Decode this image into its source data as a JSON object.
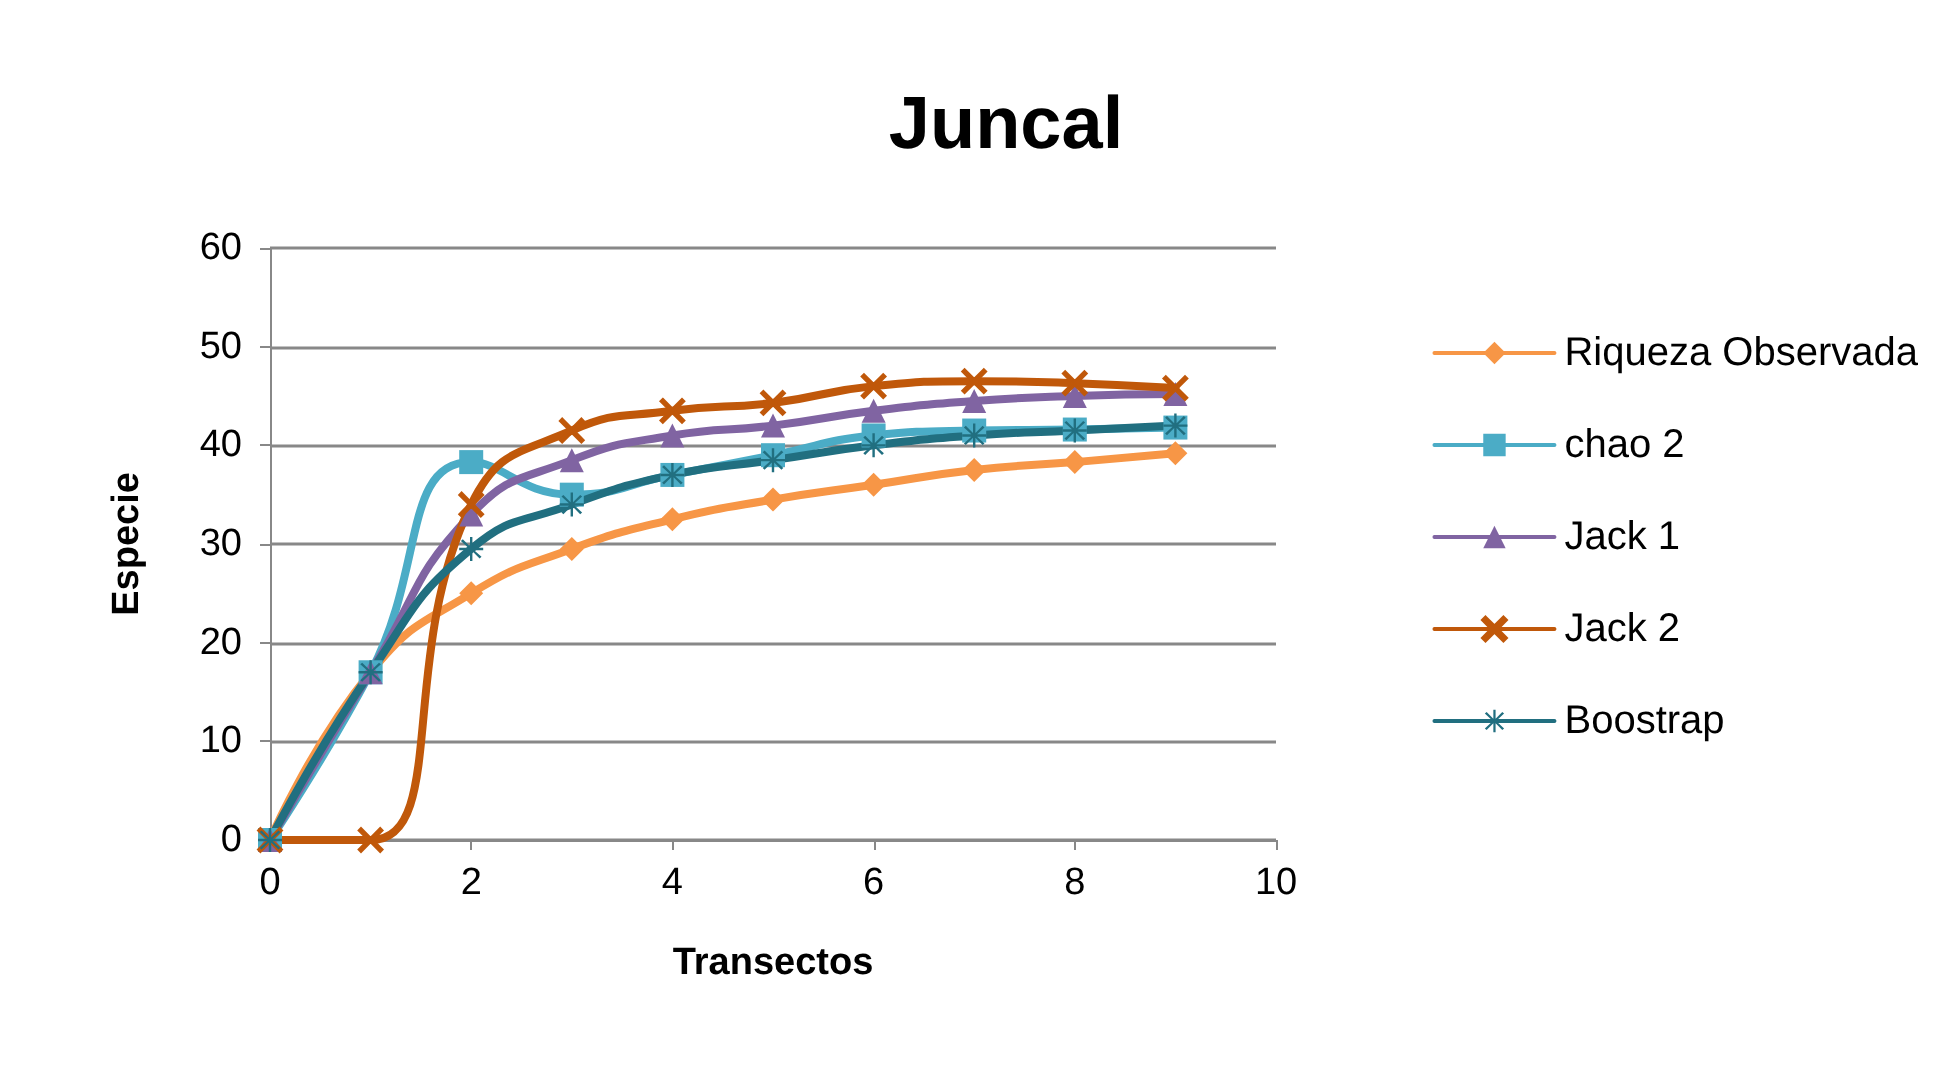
{
  "chart_data": {
    "type": "line",
    "title": "Juncal",
    "xlabel": "Transectos",
    "ylabel": "Especie",
    "x": [
      0,
      1,
      2,
      3,
      4,
      5,
      6,
      7,
      8,
      9
    ],
    "xlim": [
      0,
      10
    ],
    "xticks": [
      0,
      2,
      4,
      6,
      8,
      10
    ],
    "ylim": [
      0,
      60
    ],
    "yticks": [
      0,
      10,
      20,
      30,
      40,
      50,
      60
    ],
    "grid": "y",
    "legend": "right",
    "series": [
      {
        "name": "Riqueza Observada",
        "color": "#f79646",
        "marker": "diamond",
        "values": [
          0,
          17,
          25,
          29.5,
          32.5,
          34.5,
          36,
          37.5,
          38.3,
          39.2
        ]
      },
      {
        "name": "chao 2",
        "color": "#4bacc6",
        "marker": "square",
        "values": [
          0,
          17,
          38.3,
          35,
          37,
          39,
          41,
          41.5,
          41.6,
          41.8
        ]
      },
      {
        "name": "Jack 1",
        "color": "#8064a2",
        "marker": "triangle",
        "values": [
          0,
          17,
          33,
          38.5,
          41,
          42,
          43.5,
          44.5,
          45,
          45.2
        ]
      },
      {
        "name": "Jack 2",
        "color": "#c0580a",
        "marker": "cross",
        "values": [
          0,
          0,
          34,
          41.5,
          43.5,
          44.3,
          46,
          46.5,
          46.3,
          45.8
        ]
      },
      {
        "name": "Boostrap",
        "color": "#216f80",
        "marker": "star",
        "values": [
          0,
          17,
          29.5,
          34,
          37,
          38.5,
          40,
          41,
          41.5,
          42
        ]
      }
    ]
  }
}
